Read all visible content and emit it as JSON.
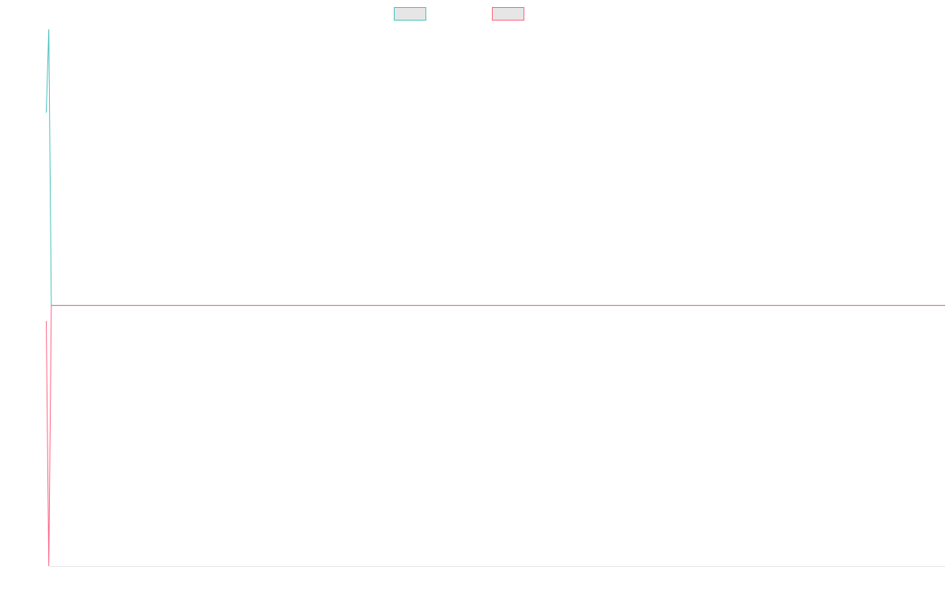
{
  "colors": {
    "series_1": "#4bc0c0",
    "series_2": "#ff6384",
    "legend_fill": "#e6e6e6",
    "axis_line": "#e6e6e6"
  },
  "chart_data": {
    "type": "line",
    "title": "",
    "xlabel": "",
    "ylabel": "",
    "legend_position": "top",
    "grid": false,
    "x": [
      0,
      1,
      2,
      3,
      4
    ],
    "ylim": [
      -100,
      106
    ],
    "series": [
      {
        "name": "",
        "color_key": "series_1",
        "values": [
          74,
          106,
          0,
          0,
          0
        ]
      },
      {
        "name": "",
        "color_key": "series_2",
        "values": [
          -6,
          -100,
          0,
          0,
          0
        ]
      }
    ]
  }
}
